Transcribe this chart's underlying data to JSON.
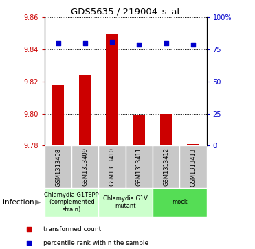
{
  "title": "GDS5635 / 219004_s_at",
  "samples": [
    "GSM1313408",
    "GSM1313409",
    "GSM1313410",
    "GSM1313411",
    "GSM1313412",
    "GSM1313413"
  ],
  "bar_values": [
    9.818,
    9.824,
    9.85,
    9.799,
    9.8,
    9.781
  ],
  "percentile_values": [
    80,
    80,
    81,
    79,
    80,
    79
  ],
  "bar_color": "#cc0000",
  "dot_color": "#0000cc",
  "ylim_left": [
    9.78,
    9.86
  ],
  "ylim_right": [
    0,
    100
  ],
  "yticks_left": [
    9.78,
    9.8,
    9.82,
    9.84,
    9.86
  ],
  "ytick_labels_right": [
    "0",
    "25",
    "50",
    "75",
    "100%"
  ],
  "groups": [
    {
      "label": "Chlamydia G1TEPP\n(complemented\nstrain)",
      "start": 0,
      "end": 2,
      "color": "#ccffcc"
    },
    {
      "label": "Chlamydia G1V\nmutant",
      "start": 2,
      "end": 4,
      "color": "#ccffcc"
    },
    {
      "label": "mock",
      "start": 4,
      "end": 6,
      "color": "#55dd55"
    }
  ],
  "infection_label": "infection",
  "legend_red": "transformed count",
  "legend_blue": "percentile rank within the sample",
  "bar_width": 0.45,
  "sample_box_color": "#c8c8c8",
  "grid_color": "#000000"
}
